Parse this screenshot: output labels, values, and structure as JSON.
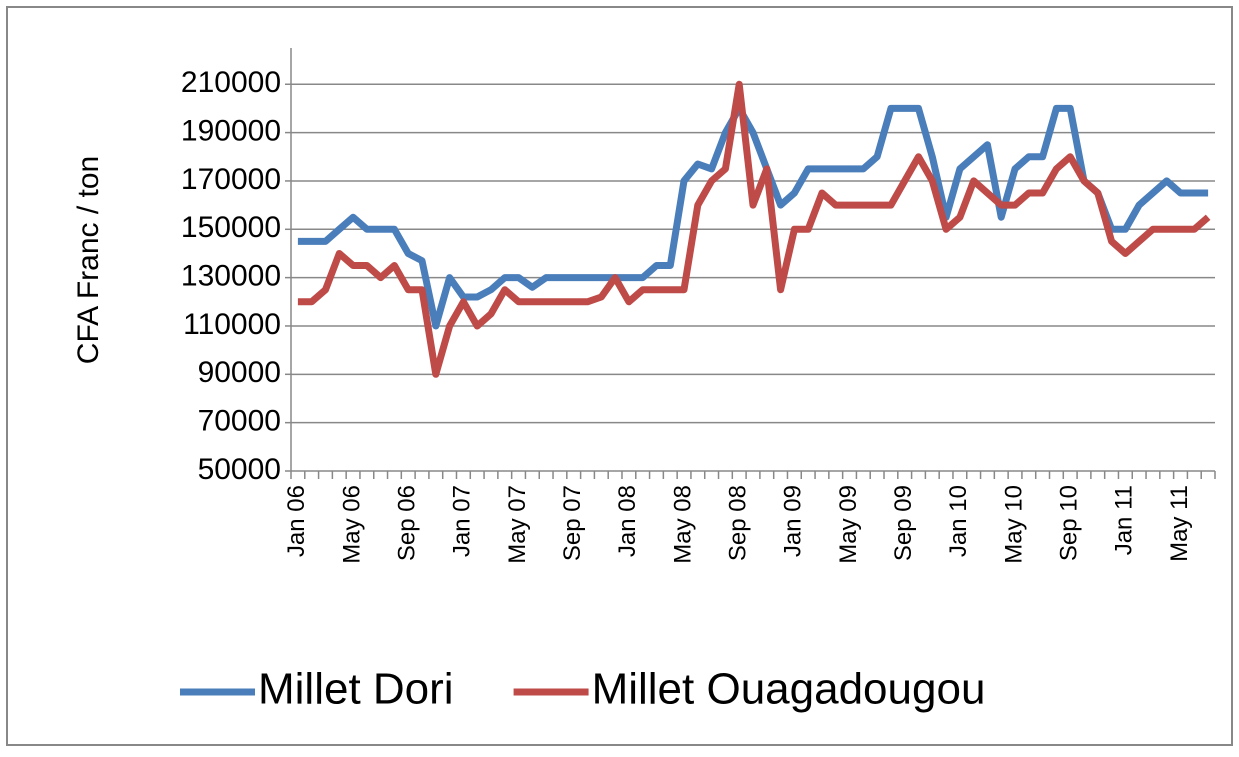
{
  "chart_data": {
    "type": "line",
    "y_label": "CFA Franc / ton",
    "categories": [
      "Jan 06",
      null,
      null,
      null,
      "May 06",
      null,
      null,
      null,
      "Sep 06",
      null,
      null,
      null,
      "Jan 07",
      null,
      null,
      null,
      "May 07",
      null,
      null,
      null,
      "Sep 07",
      null,
      null,
      null,
      "Jan 08",
      null,
      null,
      null,
      "May 08",
      null,
      null,
      null,
      "Sep 08",
      null,
      null,
      null,
      "Jan 09",
      null,
      null,
      null,
      "May 09",
      null,
      null,
      null,
      "Sep 09",
      null,
      null,
      null,
      "Jan 10",
      null,
      null,
      null,
      "May 10",
      null,
      null,
      null,
      "Sep 10",
      null,
      null,
      null,
      "Jan 11",
      null,
      null,
      null,
      "May 11",
      null,
      null
    ],
    "series": [
      {
        "name": "Millet Dori",
        "color": "#4a7ebb",
        "values": [
          145000,
          145000,
          145000,
          150000,
          155000,
          150000,
          150000,
          150000,
          140000,
          137000,
          110000,
          130000,
          122000,
          122000,
          125000,
          130000,
          130000,
          126000,
          130000,
          130000,
          130000,
          130000,
          130000,
          130000,
          130000,
          130000,
          135000,
          135000,
          170000,
          177000,
          175000,
          190000,
          200000,
          190000,
          175000,
          160000,
          165000,
          175000,
          175000,
          175000,
          175000,
          175000,
          180000,
          200000,
          200000,
          200000,
          180000,
          155000,
          175000,
          180000,
          185000,
          155000,
          175000,
          180000,
          180000,
          200000,
          200000,
          170000,
          165000,
          150000,
          150000,
          160000,
          165000,
          170000,
          165000,
          165000,
          165000
        ]
      },
      {
        "name": "Millet Ouagadougou",
        "color": "#be4b48",
        "values": [
          120000,
          120000,
          125000,
          140000,
          135000,
          135000,
          130000,
          135000,
          125000,
          125000,
          90000,
          110000,
          120000,
          110000,
          115000,
          125000,
          120000,
          120000,
          120000,
          120000,
          120000,
          120000,
          122000,
          130000,
          120000,
          125000,
          125000,
          125000,
          125000,
          160000,
          170000,
          175000,
          210000,
          160000,
          175000,
          125000,
          150000,
          150000,
          165000,
          160000,
          160000,
          160000,
          160000,
          160000,
          170000,
          180000,
          170000,
          150000,
          155000,
          170000,
          165000,
          160000,
          160000,
          165000,
          165000,
          175000,
          180000,
          170000,
          165000,
          145000,
          140000,
          145000,
          150000,
          150000,
          150000,
          150000,
          155000
        ]
      }
    ],
    "ylim": [
      50000,
      225000
    ],
    "yticks": [
      50000,
      70000,
      90000,
      110000,
      130000,
      150000,
      170000,
      190000,
      210000
    ],
    "grid": true,
    "legend": "bottom"
  }
}
